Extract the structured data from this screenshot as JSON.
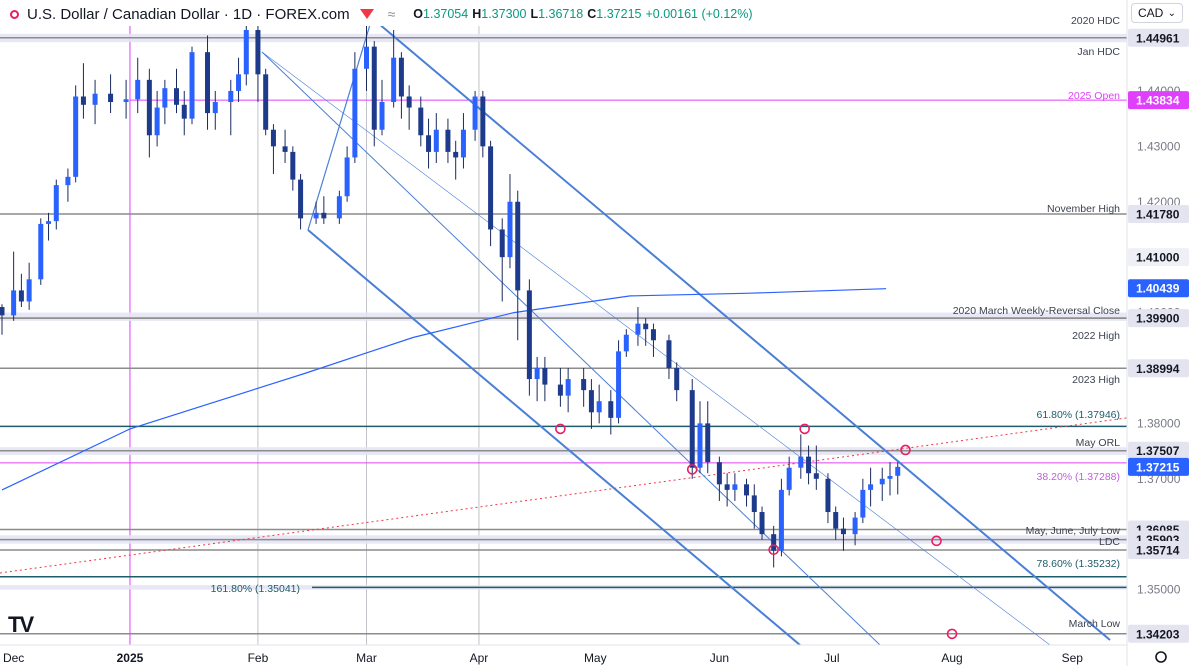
{
  "header": {
    "symbol": "U.S. Dollar / Canadian Dollar · 1D · FOREX.com",
    "ohlc": [
      {
        "label": "O",
        "value": "1.37054"
      },
      {
        "label": "H",
        "value": "1.37300"
      },
      {
        "label": "L",
        "value": "1.36718"
      },
      {
        "label": "C",
        "value": "1.37215"
      },
      {
        "label": "",
        "value": "+0.00161 (+0.12%)"
      }
    ]
  },
  "currency_select": {
    "value": "CAD",
    "icon": "chevron-down-icon"
  },
  "settings_icon": "gear-icon",
  "logo": "TradingView",
  "colors": {
    "candle_body": "#2962ff",
    "channel": "#4a7fd6",
    "level_line": "#8c8c8c",
    "open_line": "#e040fb",
    "fib_line": "#1e5c6b",
    "sma": "#2962ff",
    "marker": "#e91e63",
    "price_badge": "#2962ff"
  },
  "chart_data": {
    "type": "candlestick",
    "timeframe": "1D",
    "yaxis": {
      "range": [
        1.34,
        1.451
      ],
      "ticks": [
        "1.44000",
        "1.43000",
        "1.42000",
        "1.41000",
        "1.40000",
        "1.38000",
        "1.37000",
        "1.35000"
      ]
    },
    "xaxis": {
      "range": [
        "2024-11-29",
        "2025-09-03"
      ],
      "ticks": [
        {
          "label": "Dec",
          "date": "2024-12-02"
        },
        {
          "label": "2025",
          "date": "2025-01-01"
        },
        {
          "label": "Feb",
          "date": "2025-02-03"
        },
        {
          "label": "Mar",
          "date": "2025-03-03"
        },
        {
          "label": "Apr",
          "date": "2025-04-01"
        },
        {
          "label": "May",
          "date": "2025-05-01"
        },
        {
          "label": "Jun",
          "date": "2025-06-02"
        },
        {
          "label": "Jul",
          "date": "2025-07-01"
        },
        {
          "label": "Aug",
          "date": "2025-08-01"
        },
        {
          "label": "Sep",
          "date": "2025-09-01"
        }
      ]
    },
    "levels": [
      {
        "label": "2020 HDC",
        "price": 1.4496,
        "badge": "1.44961"
      },
      {
        "label": "Jan HDC",
        "price": 1.4496,
        "badge": ""
      },
      {
        "label": "2025 Open",
        "price": 1.43834,
        "badge": "1.43834"
      },
      {
        "label": "November High",
        "price": 1.4178,
        "badge": "1.41780"
      },
      {
        "label": "2020 March Weekly-Reversal Close",
        "price": 1.399,
        "badge": "1.39900"
      },
      {
        "label": "2022 High",
        "price": 1.399,
        "badge": ""
      },
      {
        "label": "2023 High",
        "price": 1.38994,
        "badge": "1.38994"
      },
      {
        "label": "61.80% (1.37946)",
        "price": 1.37946,
        "badge": ""
      },
      {
        "label": "May ORL",
        "price": 1.37507,
        "badge": "1.37507"
      },
      {
        "label": "38.20% (1.37288)",
        "price": 1.37288,
        "badge": ""
      },
      {
        "label": "May, June, July Low",
        "price": 1.36085,
        "badge": "1.36085"
      },
      {
        "label": "LDC",
        "price": 1.35903,
        "badge": "1.35903"
      },
      {
        "label": "",
        "price": 1.35714,
        "badge": "1.35714"
      },
      {
        "label": "78.60% (1.35232)",
        "price": 1.35232,
        "badge": ""
      },
      {
        "label": "161.80% (1.35041)",
        "price": 1.35041,
        "badge": ""
      },
      {
        "label": "March Low",
        "price": 1.34203,
        "badge": "1.34203"
      }
    ],
    "axis_badges": [
      {
        "value": "1.41000",
        "price": 1.41
      },
      {
        "value": "1.40439",
        "price": 1.40439
      },
      {
        "value": "1.37215",
        "price": 1.37215
      }
    ],
    "sma_200": {
      "points": [
        [
          "2024-11-29",
          1.368
        ],
        [
          "2025-01-01",
          1.379
        ],
        [
          "2025-02-15",
          1.389
        ],
        [
          "2025-03-15",
          1.3955
        ],
        [
          "2025-04-10",
          1.4
        ],
        [
          "2025-05-10",
          1.403
        ],
        [
          "2025-06-10",
          1.4035
        ],
        [
          "2025-07-15",
          1.4043
        ]
      ]
    },
    "candles": [
      [
        "2024-11-29",
        1.401,
        1.4015,
        1.396,
        1.3995
      ],
      [
        "2024-12-02",
        1.3995,
        1.411,
        1.3985,
        1.404
      ],
      [
        "2024-12-04",
        1.404,
        1.407,
        1.401,
        1.402
      ],
      [
        "2024-12-06",
        1.402,
        1.409,
        1.4005,
        1.406
      ],
      [
        "2024-12-09",
        1.406,
        1.417,
        1.405,
        1.416
      ],
      [
        "2024-12-11",
        1.416,
        1.418,
        1.413,
        1.4165
      ],
      [
        "2024-12-13",
        1.4165,
        1.424,
        1.415,
        1.423
      ],
      [
        "2024-12-16",
        1.423,
        1.426,
        1.42,
        1.4245
      ],
      [
        "2024-12-18",
        1.4245,
        1.441,
        1.4235,
        1.439
      ],
      [
        "2024-12-20",
        1.439,
        1.445,
        1.435,
        1.4375
      ],
      [
        "2024-12-23",
        1.4375,
        1.442,
        1.434,
        1.4395
      ],
      [
        "2024-12-27",
        1.4395,
        1.443,
        1.436,
        1.438
      ],
      [
        "2024-12-31",
        1.438,
        1.442,
        1.435,
        1.4385
      ],
      [
        "2025-01-03",
        1.4385,
        1.446,
        1.436,
        1.442
      ],
      [
        "2025-01-06",
        1.442,
        1.444,
        1.428,
        1.432
      ],
      [
        "2025-01-08",
        1.432,
        1.44,
        1.43,
        1.437
      ],
      [
        "2025-01-10",
        1.437,
        1.442,
        1.434,
        1.4405
      ],
      [
        "2025-01-13",
        1.4405,
        1.444,
        1.436,
        1.4375
      ],
      [
        "2025-01-15",
        1.4375,
        1.44,
        1.432,
        1.435
      ],
      [
        "2025-01-17",
        1.435,
        1.448,
        1.434,
        1.447
      ],
      [
        "2025-01-21",
        1.447,
        1.45,
        1.433,
        1.436
      ],
      [
        "2025-01-23",
        1.436,
        1.44,
        1.433,
        1.438
      ],
      [
        "2025-01-27",
        1.438,
        1.442,
        1.432,
        1.44
      ],
      [
        "2025-01-29",
        1.44,
        1.446,
        1.438,
        1.443
      ],
      [
        "2025-01-31",
        1.443,
        1.453,
        1.441,
        1.451
      ],
      [
        "2025-02-03",
        1.451,
        1.4793,
        1.438,
        1.443
      ],
      [
        "2025-02-05",
        1.443,
        1.444,
        1.432,
        1.433
      ],
      [
        "2025-02-07",
        1.433,
        1.434,
        1.425,
        1.43
      ],
      [
        "2025-02-10",
        1.43,
        1.433,
        1.427,
        1.429
      ],
      [
        "2025-02-12",
        1.429,
        1.43,
        1.422,
        1.424
      ],
      [
        "2025-02-14",
        1.424,
        1.425,
        1.415,
        1.417
      ],
      [
        "2025-02-18",
        1.417,
        1.42,
        1.416,
        1.418
      ],
      [
        "2025-02-20",
        1.418,
        1.421,
        1.416,
        1.417
      ],
      [
        "2025-02-24",
        1.417,
        1.422,
        1.416,
        1.421
      ],
      [
        "2025-02-26",
        1.421,
        1.43,
        1.42,
        1.428
      ],
      [
        "2025-02-28",
        1.428,
        1.447,
        1.427,
        1.444
      ],
      [
        "2025-03-03",
        1.444,
        1.4545,
        1.44,
        1.448
      ],
      [
        "2025-03-05",
        1.448,
        1.449,
        1.43,
        1.433
      ],
      [
        "2025-03-07",
        1.433,
        1.442,
        1.432,
        1.438
      ],
      [
        "2025-03-10",
        1.438,
        1.451,
        1.437,
        1.446
      ],
      [
        "2025-03-12",
        1.446,
        1.447,
        1.435,
        1.439
      ],
      [
        "2025-03-14",
        1.439,
        1.441,
        1.433,
        1.437
      ],
      [
        "2025-03-17",
        1.437,
        1.439,
        1.43,
        1.432
      ],
      [
        "2025-03-19",
        1.432,
        1.435,
        1.426,
        1.429
      ],
      [
        "2025-03-21",
        1.429,
        1.436,
        1.427,
        1.433
      ],
      [
        "2025-03-24",
        1.433,
        1.435,
        1.427,
        1.429
      ],
      [
        "2025-03-26",
        1.429,
        1.431,
        1.424,
        1.428
      ],
      [
        "2025-03-28",
        1.428,
        1.436,
        1.426,
        1.433
      ],
      [
        "2025-03-31",
        1.433,
        1.44,
        1.431,
        1.439
      ],
      [
        "2025-04-02",
        1.439,
        1.44,
        1.428,
        1.43
      ],
      [
        "2025-04-04",
        1.43,
        1.431,
        1.412,
        1.415
      ],
      [
        "2025-04-07",
        1.415,
        1.417,
        1.402,
        1.41
      ],
      [
        "2025-04-09",
        1.41,
        1.425,
        1.408,
        1.42
      ],
      [
        "2025-04-11",
        1.42,
        1.422,
        1.395,
        1.404
      ],
      [
        "2025-04-14",
        1.404,
        1.406,
        1.385,
        1.388
      ],
      [
        "2025-04-16",
        1.388,
        1.392,
        1.384,
        1.39
      ],
      [
        "2025-04-18",
        1.39,
        1.392,
        1.384,
        1.387
      ],
      [
        "2025-04-22",
        1.387,
        1.39,
        1.383,
        1.385
      ],
      [
        "2025-04-24",
        1.385,
        1.39,
        1.382,
        1.388
      ],
      [
        "2025-04-28",
        1.388,
        1.39,
        1.383,
        1.386
      ],
      [
        "2025-04-30",
        1.386,
        1.388,
        1.379,
        1.382
      ],
      [
        "2025-05-02",
        1.382,
        1.387,
        1.38,
        1.384
      ],
      [
        "2025-05-05",
        1.384,
        1.386,
        1.378,
        1.381
      ],
      [
        "2025-05-07",
        1.381,
        1.395,
        1.38,
        1.393
      ],
      [
        "2025-05-09",
        1.393,
        1.397,
        1.392,
        1.396
      ],
      [
        "2025-05-12",
        1.396,
        1.401,
        1.394,
        1.398
      ],
      [
        "2025-05-14",
        1.398,
        1.399,
        1.394,
        1.397
      ],
      [
        "2025-05-16",
        1.397,
        1.398,
        1.392,
        1.395
      ],
      [
        "2025-05-20",
        1.395,
        1.396,
        1.388,
        1.39
      ],
      [
        "2025-05-22",
        1.39,
        1.391,
        1.384,
        1.386
      ],
      [
        "2025-05-26",
        1.386,
        1.388,
        1.37,
        1.372
      ],
      [
        "2025-05-28",
        1.372,
        1.384,
        1.371,
        1.38
      ],
      [
        "2025-05-30",
        1.38,
        1.384,
        1.371,
        1.373
      ],
      [
        "2025-06-02",
        1.373,
        1.374,
        1.366,
        1.369
      ],
      [
        "2025-06-04",
        1.369,
        1.371,
        1.365,
        1.368
      ],
      [
        "2025-06-06",
        1.368,
        1.371,
        1.366,
        1.369
      ],
      [
        "2025-06-09",
        1.369,
        1.37,
        1.365,
        1.367
      ],
      [
        "2025-06-11",
        1.367,
        1.369,
        1.361,
        1.364
      ],
      [
        "2025-06-13",
        1.364,
        1.365,
        1.359,
        1.36
      ],
      [
        "2025-06-16",
        1.36,
        1.3615,
        1.354,
        1.357
      ],
      [
        "2025-06-18",
        1.357,
        1.37,
        1.356,
        1.368
      ],
      [
        "2025-06-20",
        1.368,
        1.374,
        1.367,
        1.372
      ],
      [
        "2025-06-23",
        1.372,
        1.378,
        1.37,
        1.374
      ],
      [
        "2025-06-25",
        1.374,
        1.376,
        1.369,
        1.371
      ],
      [
        "2025-06-27",
        1.371,
        1.376,
        1.368,
        1.37
      ],
      [
        "2025-06-30",
        1.37,
        1.371,
        1.362,
        1.364
      ],
      [
        "2025-07-02",
        1.364,
        1.365,
        1.359,
        1.361
      ],
      [
        "2025-07-04",
        1.361,
        1.363,
        1.357,
        1.36
      ],
      [
        "2025-07-07",
        1.36,
        1.364,
        1.358,
        1.363
      ],
      [
        "2025-07-09",
        1.363,
        1.37,
        1.362,
        1.368
      ],
      [
        "2025-07-11",
        1.368,
        1.372,
        1.365,
        1.369
      ],
      [
        "2025-07-14",
        1.369,
        1.372,
        1.366,
        1.37
      ],
      [
        "2025-07-16",
        1.37,
        1.373,
        1.367,
        1.3705
      ],
      [
        "2025-07-18",
        1.37054,
        1.373,
        1.36718,
        1.37215
      ]
    ],
    "markers": [
      {
        "date": "2025-04-22",
        "price": 1.379
      },
      {
        "date": "2025-05-26",
        "price": 1.3717
      },
      {
        "date": "2025-06-16",
        "price": 1.3572
      },
      {
        "date": "2025-06-24",
        "price": 1.379
      },
      {
        "date": "2025-07-20",
        "price": 1.3752
      },
      {
        "date": "2025-07-28",
        "price": 1.3588
      },
      {
        "date": "2025-08-01",
        "price": 1.342
      }
    ]
  }
}
